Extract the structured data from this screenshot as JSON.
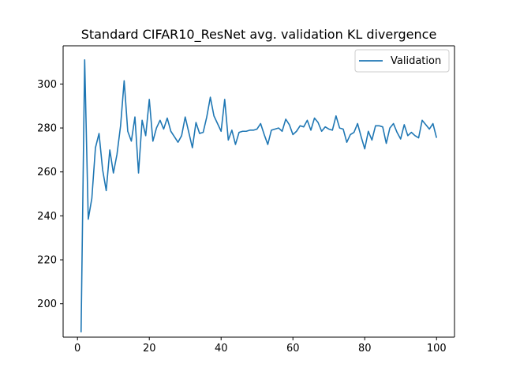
{
  "chart_data": {
    "type": "line",
    "title": "Standard CIFAR10_ResNet avg. validation KL divergence",
    "xlabel": "",
    "ylabel": "",
    "xlim": [
      -4,
      105
    ],
    "ylim": [
      184.8,
      317.4
    ],
    "xticks": [
      0,
      20,
      40,
      60,
      80,
      100
    ],
    "yticks": [
      200,
      220,
      240,
      260,
      280,
      300
    ],
    "grid": false,
    "legend_position": "top-right",
    "series": [
      {
        "name": "Validation",
        "color": "#1f77b4",
        "x": [
          1,
          2,
          3,
          4,
          5,
          6,
          7,
          8,
          9,
          10,
          11,
          12,
          13,
          14,
          15,
          16,
          17,
          18,
          19,
          20,
          21,
          22,
          23,
          24,
          25,
          26,
          27,
          28,
          29,
          30,
          31,
          32,
          33,
          34,
          35,
          36,
          37,
          38,
          39,
          40,
          41,
          42,
          43,
          44,
          45,
          46,
          47,
          48,
          49,
          50,
          51,
          52,
          53,
          54,
          55,
          56,
          57,
          58,
          59,
          60,
          61,
          62,
          63,
          64,
          65,
          66,
          67,
          68,
          69,
          70,
          71,
          72,
          73,
          74,
          75,
          76,
          77,
          78,
          79,
          80,
          81,
          82,
          83,
          84,
          85,
          86,
          87,
          88,
          89,
          90,
          91,
          92,
          93,
          94,
          95,
          96,
          97,
          98,
          99,
          100
        ],
        "values": [
          187,
          311,
          238.5,
          248,
          271,
          277.5,
          261,
          251.5,
          270,
          259.5,
          268,
          281,
          301.5,
          278.5,
          274,
          285,
          259.5,
          283.5,
          276.5,
          293,
          274,
          280,
          283.5,
          279.5,
          284.5,
          278.5,
          276,
          273.5,
          276.5,
          285,
          278,
          271,
          282.5,
          277.5,
          278,
          285,
          294,
          285.5,
          282,
          278.5,
          293,
          274.5,
          279,
          272.5,
          278,
          278.5,
          278.5,
          279,
          279,
          279.5,
          282,
          277,
          272.5,
          279,
          279.5,
          280,
          278.5,
          284,
          281.5,
          277,
          278.5,
          281,
          280.5,
          283.5,
          279,
          284.5,
          282.5,
          278.5,
          280.5,
          279.5,
          279,
          285.5,
          280,
          279.5,
          273.5,
          277,
          278,
          282,
          276,
          270.5,
          278.5,
          274.5,
          281,
          281,
          280.5,
          273,
          280,
          282,
          278,
          275,
          281.5,
          276.5,
          278,
          276.5,
          275.5,
          283.5,
          281.5,
          279.5,
          282,
          275.5
        ]
      }
    ]
  }
}
